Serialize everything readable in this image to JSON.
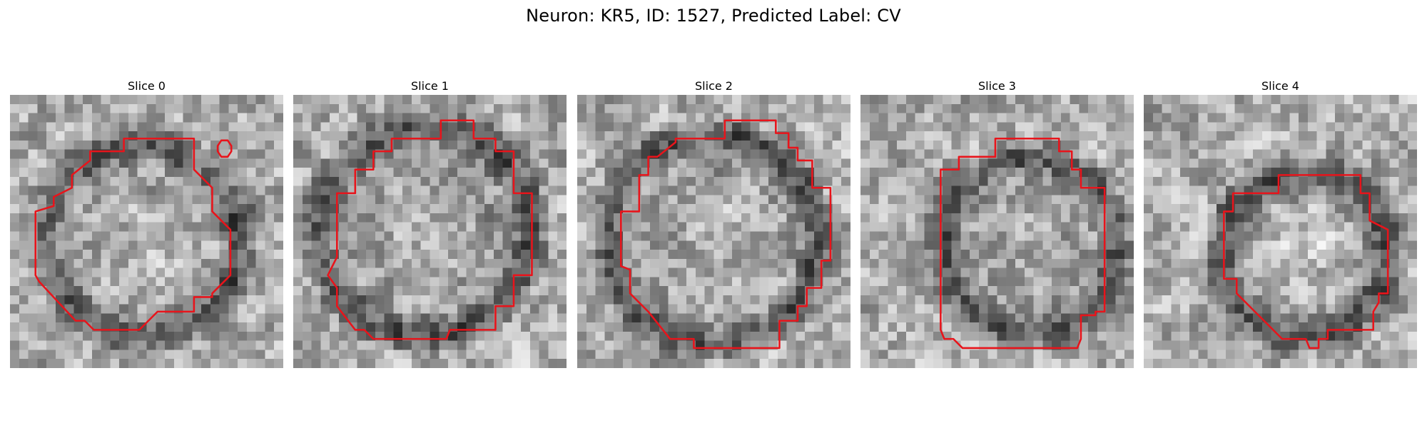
{
  "figure": {
    "title": "Neuron: KR5, ID: 1527, Predicted Label: CV",
    "contour_color": "#e8141b",
    "grid_size": 30
  },
  "panels": [
    {
      "title": "Slice 0",
      "seed": 11,
      "cx": 14.5,
      "cy": 16.0,
      "r": 10.5,
      "blob": 0.5,
      "contour": [
        [
          12.5,
          4.8
        ],
        [
          20.2,
          4.8
        ],
        [
          20.2,
          8.2
        ],
        [
          22.2,
          10.2
        ],
        [
          22.2,
          12.8
        ],
        [
          24.2,
          14.8
        ],
        [
          24.2,
          19.8
        ],
        [
          22.2,
          21.8
        ],
        [
          22.2,
          22.2
        ],
        [
          20.2,
          22.2
        ],
        [
          20.2,
          23.8
        ],
        [
          16.2,
          23.8
        ],
        [
          15.2,
          24.8
        ],
        [
          14.2,
          25.8
        ],
        [
          9.2,
          25.8
        ],
        [
          8.2,
          24.8
        ],
        [
          7.2,
          24.8
        ],
        [
          3.2,
          20.5
        ],
        [
          2.8,
          19.8
        ],
        [
          2.8,
          12.8
        ],
        [
          4.8,
          12.2
        ],
        [
          4.8,
          11.2
        ],
        [
          6.8,
          10.2
        ],
        [
          6.8,
          8.8
        ],
        [
          8.8,
          7.2
        ],
        [
          8.8,
          6.2
        ],
        [
          12.5,
          6.2
        ]
      ],
      "extra": [
        [
          23.2,
          5.0
        ],
        [
          23.9,
          5.0
        ],
        [
          24.3,
          5.6
        ],
        [
          24.3,
          6.2
        ],
        [
          23.9,
          6.8
        ],
        [
          23.2,
          6.8
        ],
        [
          22.8,
          6.2
        ],
        [
          22.8,
          5.6
        ]
      ]
    },
    {
      "title": "Slice 1",
      "seed": 23,
      "cx": 14.5,
      "cy": 15.0,
      "r": 11.5,
      "blob": 0.3,
      "contour": [
        [
          16.2,
          2.8
        ],
        [
          19.8,
          2.8
        ],
        [
          19.8,
          4.8
        ],
        [
          22.2,
          4.8
        ],
        [
          22.2,
          6.2
        ],
        [
          24.2,
          6.2
        ],
        [
          24.2,
          10.8
        ],
        [
          26.2,
          10.8
        ],
        [
          26.2,
          19.8
        ],
        [
          24.2,
          19.8
        ],
        [
          24.2,
          23.2
        ],
        [
          22.2,
          23.2
        ],
        [
          22.2,
          25.8
        ],
        [
          17.2,
          25.8
        ],
        [
          16.8,
          26.8
        ],
        [
          8.8,
          26.8
        ],
        [
          7.8,
          25.8
        ],
        [
          6.8,
          25.8
        ],
        [
          4.8,
          23.2
        ],
        [
          4.8,
          21.2
        ],
        [
          3.8,
          19.8
        ],
        [
          4.8,
          17.8
        ],
        [
          4.8,
          10.8
        ],
        [
          6.8,
          10.8
        ],
        [
          6.8,
          8.2
        ],
        [
          8.8,
          8.2
        ],
        [
          8.8,
          6.2
        ],
        [
          10.8,
          6.2
        ],
        [
          10.8,
          4.8
        ],
        [
          16.2,
          4.8
        ]
      ]
    },
    {
      "title": "Slice 2",
      "seed": 37,
      "cx": 15.0,
      "cy": 16.0,
      "r": 11.5,
      "blob": 0.4,
      "contour": [
        [
          16.2,
          2.8
        ],
        [
          21.8,
          2.8
        ],
        [
          21.8,
          4.2
        ],
        [
          23.2,
          4.2
        ],
        [
          23.2,
          5.8
        ],
        [
          24.2,
          5.8
        ],
        [
          24.2,
          7.2
        ],
        [
          25.8,
          7.2
        ],
        [
          25.8,
          10.2
        ],
        [
          27.8,
          10.2
        ],
        [
          27.8,
          18.2
        ],
        [
          26.8,
          18.2
        ],
        [
          26.8,
          21.2
        ],
        [
          25.2,
          21.2
        ],
        [
          25.2,
          23.2
        ],
        [
          24.2,
          23.2
        ],
        [
          24.2,
          24.8
        ],
        [
          22.2,
          24.8
        ],
        [
          22.2,
          27.8
        ],
        [
          12.8,
          27.8
        ],
        [
          12.8,
          26.8
        ],
        [
          10.2,
          26.8
        ],
        [
          7.8,
          23.8
        ],
        [
          5.8,
          21.8
        ],
        [
          5.8,
          19.2
        ],
        [
          4.8,
          18.8
        ],
        [
          4.8,
          12.8
        ],
        [
          6.8,
          12.8
        ],
        [
          6.8,
          8.8
        ],
        [
          7.8,
          8.8
        ],
        [
          7.8,
          6.8
        ],
        [
          8.8,
          6.8
        ],
        [
          10.8,
          5.2
        ],
        [
          10.8,
          4.8
        ],
        [
          16.2,
          4.8
        ]
      ]
    },
    {
      "title": "Slice 3",
      "seed": 53,
      "cx": 18.5,
      "cy": 16.5,
      "r": 9.5,
      "blob": 0.3,
      "contour": [
        [
          14.8,
          4.8
        ],
        [
          21.8,
          4.8
        ],
        [
          21.8,
          6.2
        ],
        [
          23.2,
          6.2
        ],
        [
          23.2,
          8.2
        ],
        [
          24.2,
          8.2
        ],
        [
          24.2,
          10.2
        ],
        [
          26.8,
          10.2
        ],
        [
          26.8,
          23.8
        ],
        [
          25.8,
          23.8
        ],
        [
          25.8,
          24.2
        ],
        [
          24.2,
          24.2
        ],
        [
          24.2,
          26.8
        ],
        [
          23.8,
          27.8
        ],
        [
          11.2,
          27.8
        ],
        [
          10.2,
          26.8
        ],
        [
          9.2,
          26.8
        ],
        [
          8.8,
          25.8
        ],
        [
          8.8,
          8.2
        ],
        [
          10.8,
          8.2
        ],
        [
          10.8,
          6.8
        ],
        [
          14.8,
          6.8
        ]
      ]
    },
    {
      "title": "Slice 4",
      "seed": 71,
      "cx": 17.5,
      "cy": 17.5,
      "r": 9.0,
      "blob": 0.9,
      "contour": [
        [
          14.8,
          8.8
        ],
        [
          23.8,
          8.8
        ],
        [
          23.8,
          10.8
        ],
        [
          24.8,
          10.8
        ],
        [
          24.8,
          13.8
        ],
        [
          26.8,
          14.8
        ],
        [
          26.8,
          21.8
        ],
        [
          25.8,
          21.8
        ],
        [
          25.8,
          22.8
        ],
        [
          25.2,
          23.8
        ],
        [
          25.2,
          25.8
        ],
        [
          20.2,
          25.8
        ],
        [
          20.2,
          26.8
        ],
        [
          19.2,
          26.8
        ],
        [
          19.2,
          27.8
        ],
        [
          18.2,
          27.8
        ],
        [
          17.8,
          26.8
        ],
        [
          15.2,
          26.8
        ],
        [
          14.2,
          25.8
        ],
        [
          12.2,
          23.8
        ],
        [
          11.2,
          22.8
        ],
        [
          10.2,
          21.8
        ],
        [
          10.2,
          20.2
        ],
        [
          8.8,
          20.2
        ],
        [
          8.8,
          12.8
        ],
        [
          9.8,
          12.8
        ],
        [
          9.8,
          10.8
        ],
        [
          14.8,
          10.8
        ]
      ]
    }
  ]
}
